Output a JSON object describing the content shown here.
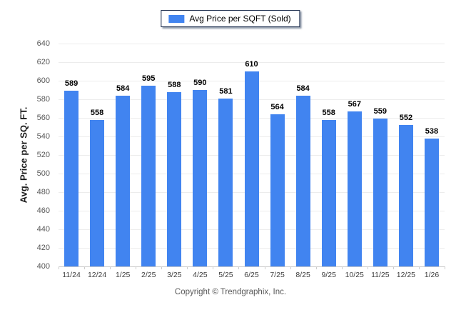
{
  "legend": {
    "label": "Avg Price per SQFT (Sold)",
    "swatch_color": "#4184F0"
  },
  "y_axis": {
    "title": "Avg. Price per SQ. FT."
  },
  "footer": {
    "copyright": "Copyright © Trendgraphix, Inc."
  },
  "chart_data": {
    "type": "bar",
    "title": "Avg Price per SQFT (Sold)",
    "categories": [
      "11/24",
      "12/24",
      "1/25",
      "2/25",
      "3/25",
      "4/25",
      "5/25",
      "6/25",
      "7/25",
      "8/25",
      "9/25",
      "10/25",
      "11/25",
      "12/25",
      "1/26"
    ],
    "values": [
      589,
      558,
      584,
      595,
      588,
      590,
      581,
      610,
      564,
      584,
      558,
      567,
      559,
      552,
      538
    ],
    "xlabel": "",
    "ylabel": "Avg. Price per SQ. FT.",
    "ylim": [
      400,
      640
    ],
    "y_step": 20,
    "bar_color": "#4184F0",
    "grid": true,
    "legend_position": "top-center",
    "legend_entries": [
      "Avg Price per SQFT (Sold)"
    ]
  }
}
